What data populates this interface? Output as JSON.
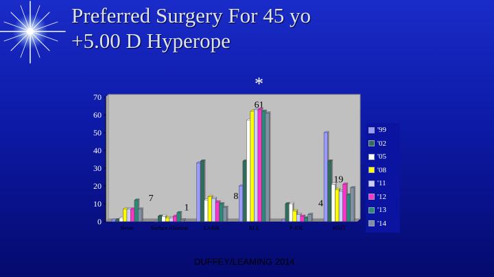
{
  "title": {
    "line1": "Preferred Surgery For 45 yo",
    "line2": "+5.00 D  Hyperope"
  },
  "annotation": "*",
  "footer": "DUFFEY/LEAMING 2014",
  "colors": {
    "plot_bg": "#c0c0c0",
    "series": [
      "#9999ff",
      "#2f6e5e",
      "#ffffff",
      "#ffff00",
      "#ccccff",
      "#ff33cc",
      "#2a8a78",
      "#7f8fa6"
    ]
  },
  "chart_data": {
    "type": "bar",
    "categories": [
      "Never",
      "Surface Ablation",
      "LASIK",
      "RLE",
      "P-IOL",
      "WAIT"
    ],
    "series": [
      {
        "name": "'99",
        "values": [
          1,
          0,
          33,
          20,
          1,
          50
        ]
      },
      {
        "name": "'02",
        "values": [
          1,
          3,
          34,
          34,
          10,
          34
        ]
      },
      {
        "name": "'05",
        "values": [
          2,
          3,
          12,
          57,
          10,
          21
        ]
      },
      {
        "name": "'08",
        "values": [
          7,
          2,
          14,
          62,
          6,
          18
        ]
      },
      {
        "name": "'11",
        "values": [
          7,
          2,
          13,
          63,
          4,
          17
        ]
      },
      {
        "name": "'12",
        "values": [
          7,
          3,
          11,
          63,
          3,
          21
        ]
      },
      {
        "name": "'13",
        "values": [
          12,
          5,
          10,
          62,
          2,
          15
        ]
      },
      {
        "name": "'14",
        "values": [
          7,
          1,
          8,
          61,
          4,
          19
        ]
      }
    ],
    "data_labels": [
      {
        "category": "Never",
        "series": "'14",
        "text": "7"
      },
      {
        "category": "Surface Ablation",
        "series": "'14",
        "text": "1"
      },
      {
        "category": "LASIK",
        "series": "'14",
        "text": "8"
      },
      {
        "category": "RLE",
        "series": "'14",
        "text": "61"
      },
      {
        "category": "P-IOL",
        "series": "'14",
        "text": "4"
      },
      {
        "category": "WAIT",
        "series": "'14",
        "text": "19"
      }
    ],
    "ylim": [
      0,
      70
    ],
    "yticks": [
      0,
      10,
      20,
      30,
      40,
      50,
      60,
      70
    ],
    "grid": false,
    "legend_position": "right"
  }
}
